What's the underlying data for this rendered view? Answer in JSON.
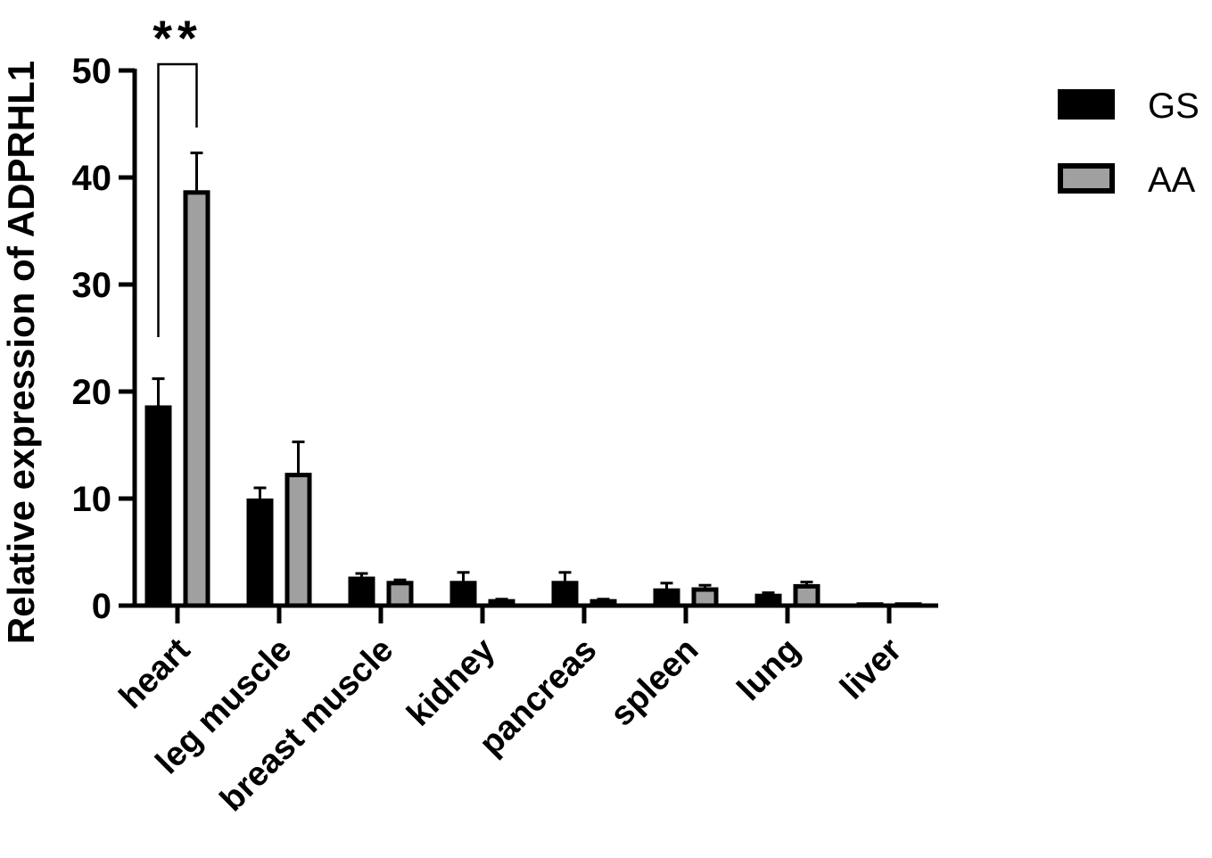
{
  "chart_data": {
    "type": "bar",
    "ylabel": "Relative expression of ADPRHL1",
    "xlabel": "",
    "ylim": [
      0,
      50
    ],
    "yticks": [
      0,
      10,
      20,
      30,
      40,
      50
    ],
    "categories": [
      "heart",
      "leg muscle",
      "breast muscle",
      "kidney",
      "pancreas",
      "spleen",
      "lung",
      "liver"
    ],
    "series": [
      {
        "name": "GS",
        "color": "#000000",
        "values": [
          18.5,
          9.8,
          2.5,
          2.1,
          2.1,
          1.4,
          0.9,
          0.1
        ],
        "errors": [
          2.7,
          1.2,
          0.5,
          1.0,
          1.0,
          0.7,
          0.3,
          0.05
        ]
      },
      {
        "name": "AA",
        "color": "#a0a0a0",
        "values": [
          38.6,
          12.2,
          2.1,
          0.4,
          0.4,
          1.5,
          1.8,
          0.1
        ],
        "errors": [
          3.7,
          3.1,
          0.3,
          0.2,
          0.2,
          0.4,
          0.4,
          0.05
        ]
      }
    ],
    "annotations": [
      {
        "text": "**",
        "category": "heart",
        "between": [
          "GS",
          "AA"
        ]
      }
    ],
    "legend": "top-right",
    "grid": false
  }
}
